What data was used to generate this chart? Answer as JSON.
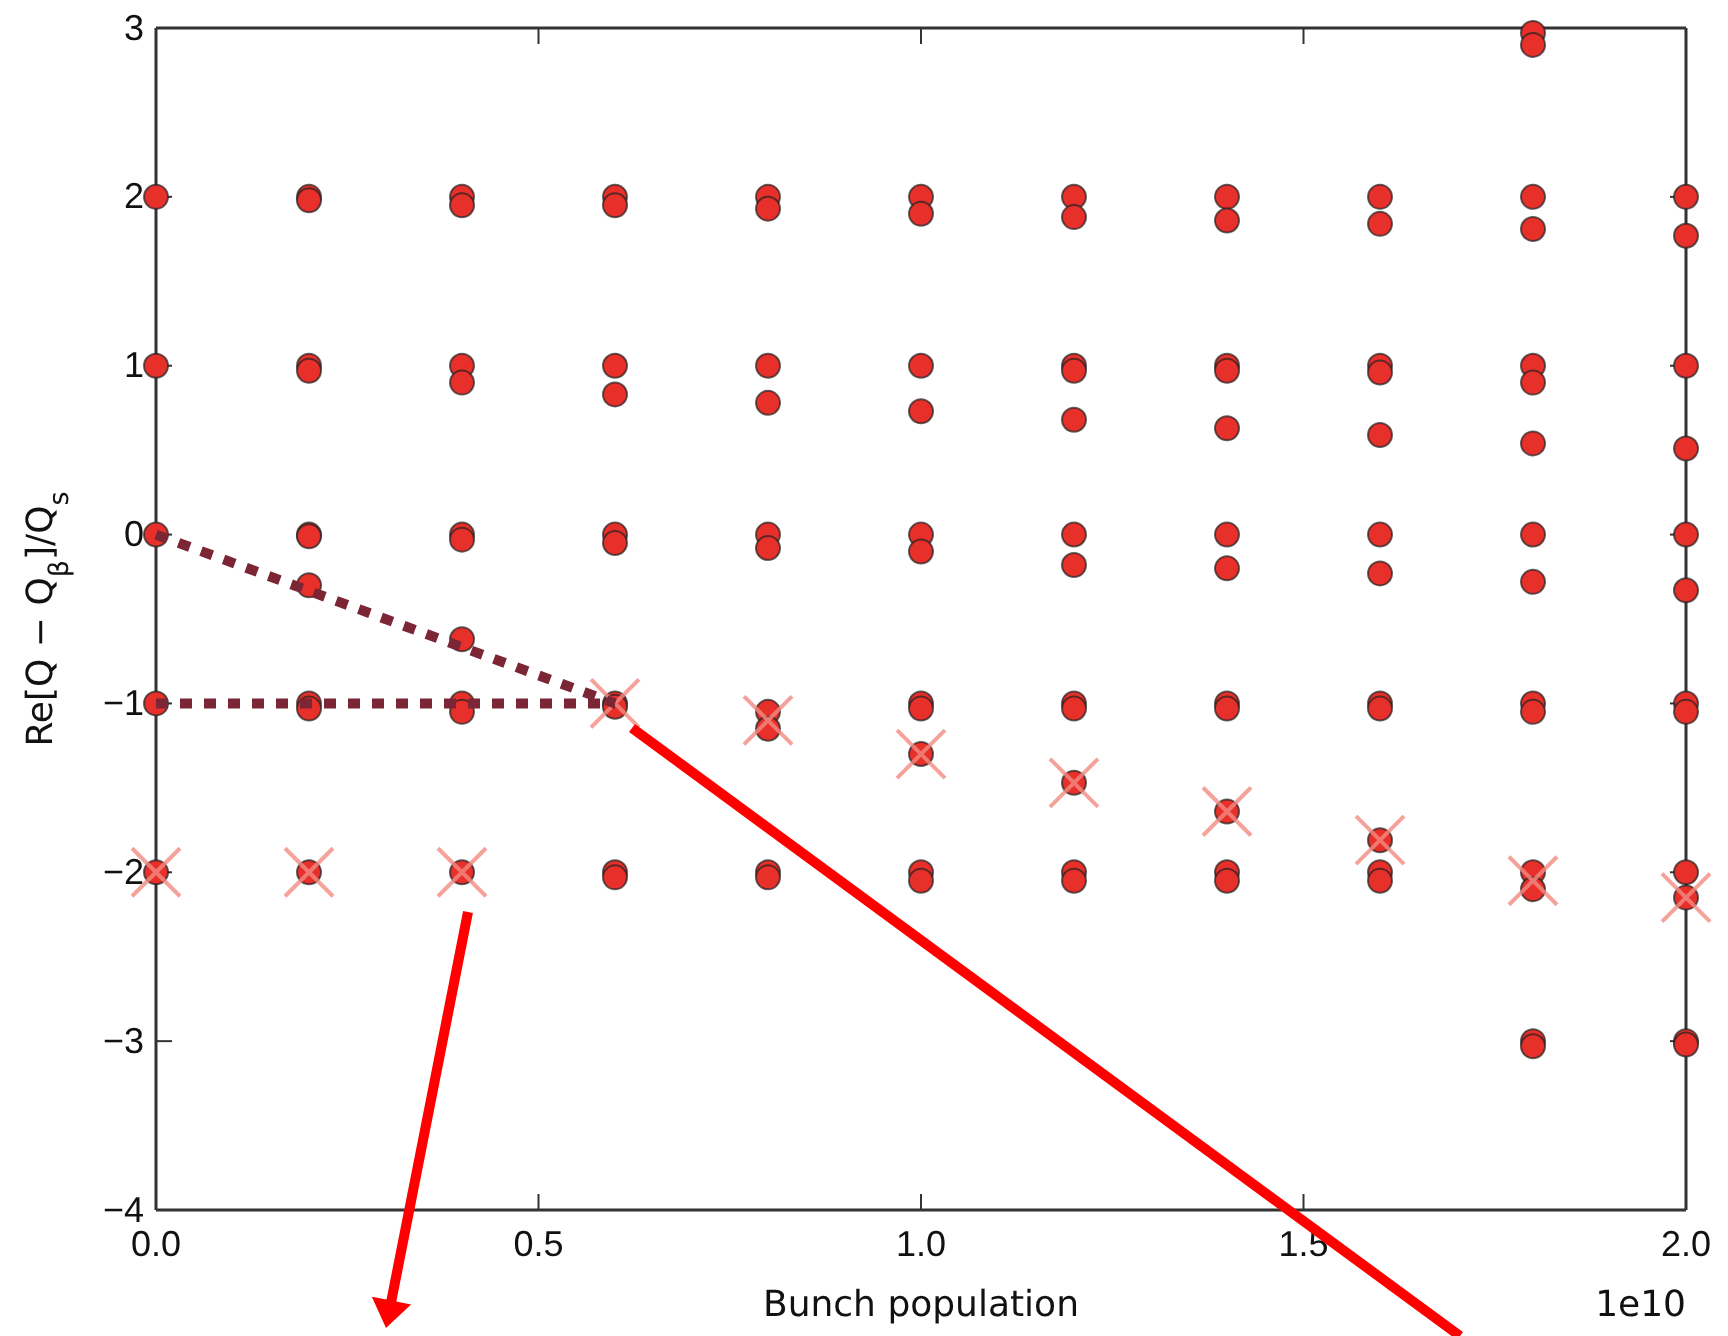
{
  "chart_data": {
    "type": "scatter",
    "xlabel": "Bunch population",
    "ylabel": "Re[Q − Q$_{β}$]/Q$_{s}$",
    "annotations": [
      "1e10"
    ],
    "xlim": [
      0,
      2.0
    ],
    "ylim": [
      -4,
      3
    ],
    "xticks": [
      {
        "value": 0,
        "label": "0.0"
      },
      {
        "value": 0.5,
        "label": "0.5"
      },
      {
        "value": 1.0,
        "label": "1.0"
      },
      {
        "value": 1.5,
        "label": "1.5"
      },
      {
        "value": 2.0,
        "label": "2.0"
      }
    ],
    "yticks": [
      {
        "value": -4,
        "label": "−4"
      },
      {
        "value": -3,
        "label": "−3"
      },
      {
        "value": -2,
        "label": "−2"
      },
      {
        "value": -1,
        "label": "−1"
      },
      0,
      1,
      2,
      3
    ],
    "grid": false,
    "series": [
      {
        "type": "scatter",
        "marker": "circle",
        "color": "#e8302a",
        "x": [
          0,
          0,
          0,
          0,
          0,
          0.2,
          0.2,
          0.2,
          0.2,
          0.2,
          0.2,
          0.2,
          0.2,
          0.2,
          0.2,
          0.4,
          0.4,
          0.4,
          0.4,
          0.4,
          0.4,
          0.4,
          0.4,
          0.4,
          0.4,
          0.6,
          0.6,
          0.6,
          0.6,
          0.6,
          0.6,
          0.6,
          0.6,
          0.6,
          0.6,
          0.8,
          0.8,
          0.8,
          0.8,
          0.8,
          0.8,
          0.8,
          0.8,
          0.8,
          0.8,
          1.0,
          1.0,
          1.0,
          1.0,
          1.0,
          1.0,
          1.0,
          1.0,
          1.0,
          1.0,
          1.0,
          1.2,
          1.2,
          1.2,
          1.2,
          1.2,
          1.2,
          1.2,
          1.2,
          1.2,
          1.2,
          1.2,
          1.2,
          1.4,
          1.4,
          1.4,
          1.4,
          1.4,
          1.4,
          1.4,
          1.4,
          1.4,
          1.4,
          1.4,
          1.4,
          1.6,
          1.6,
          1.6,
          1.6,
          1.6,
          1.6,
          1.6,
          1.6,
          1.6,
          1.6,
          1.6,
          1.6,
          1.8,
          1.8,
          1.8,
          1.8,
          1.8,
          1.8,
          1.8,
          1.8,
          1.8,
          1.8,
          1.8,
          1.8,
          1.8,
          1.8,
          1.8,
          2.0,
          2.0,
          2.0,
          2.0,
          2.0,
          2.0,
          2.0,
          2.0,
          2.0,
          2.0,
          2.0,
          2.0
        ],
        "values": [
          2,
          1,
          0,
          -1,
          -2,
          2,
          1.98,
          1,
          0.97,
          0,
          -0.01,
          -0.3,
          -1,
          -1.03,
          -2,
          2,
          1.95,
          1,
          0.9,
          0,
          -0.03,
          -0.62,
          -1,
          -1.05,
          -2,
          2,
          1.95,
          1,
          0.83,
          0,
          -0.05,
          -1,
          -1.02,
          -2,
          -2.03,
          2,
          1.93,
          1,
          0.78,
          0,
          -0.08,
          -1.05,
          -1.15,
          -2,
          -2.03,
          2,
          1.9,
          1,
          0.73,
          0,
          -0.1,
          -1,
          -1.03,
          -1.3,
          -2,
          -2.05,
          2,
          1.88,
          1,
          0.97,
          0.68,
          0,
          -0.18,
          -1,
          -1.03,
          -1.47,
          -2,
          -2.05,
          2,
          1.86,
          1,
          0.97,
          0.63,
          0,
          -0.2,
          -1,
          -1.03,
          -1.64,
          -2,
          -2.05,
          2,
          1.84,
          1,
          0.96,
          0.59,
          0,
          -0.23,
          -1,
          -1.03,
          -1.81,
          -2,
          -2.05,
          2.97,
          2.9,
          2,
          1.81,
          1,
          0.9,
          0.54,
          0,
          -0.28,
          -1,
          -1.05,
          -2,
          -2.1,
          -3,
          -3.03,
          2,
          1.77,
          1,
          0.51,
          0,
          -0.33,
          -1,
          -1.05,
          -2,
          -2.15,
          -3,
          -3.02
        ]
      },
      {
        "type": "scatter",
        "marker": "cross",
        "color": "#f28b82",
        "x": [
          0,
          0.2,
          0.4,
          0.6,
          0.8,
          1.0,
          1.2,
          1.4,
          1.6,
          1.8,
          2.0
        ],
        "values": [
          -2,
          -2,
          -2,
          -1,
          -1.1,
          -1.3,
          -1.47,
          -1.64,
          -1.81,
          -2.05,
          -2.15
        ]
      },
      {
        "type": "line",
        "line_style": "dotted",
        "color": "#7b2535",
        "x": [
          0,
          0.6
        ],
        "values": [
          0,
          -1
        ]
      },
      {
        "type": "line",
        "line_style": "dotted",
        "color": "#7b2535",
        "x": [
          0,
          0.6
        ],
        "values": [
          -1,
          -1
        ]
      }
    ]
  }
}
